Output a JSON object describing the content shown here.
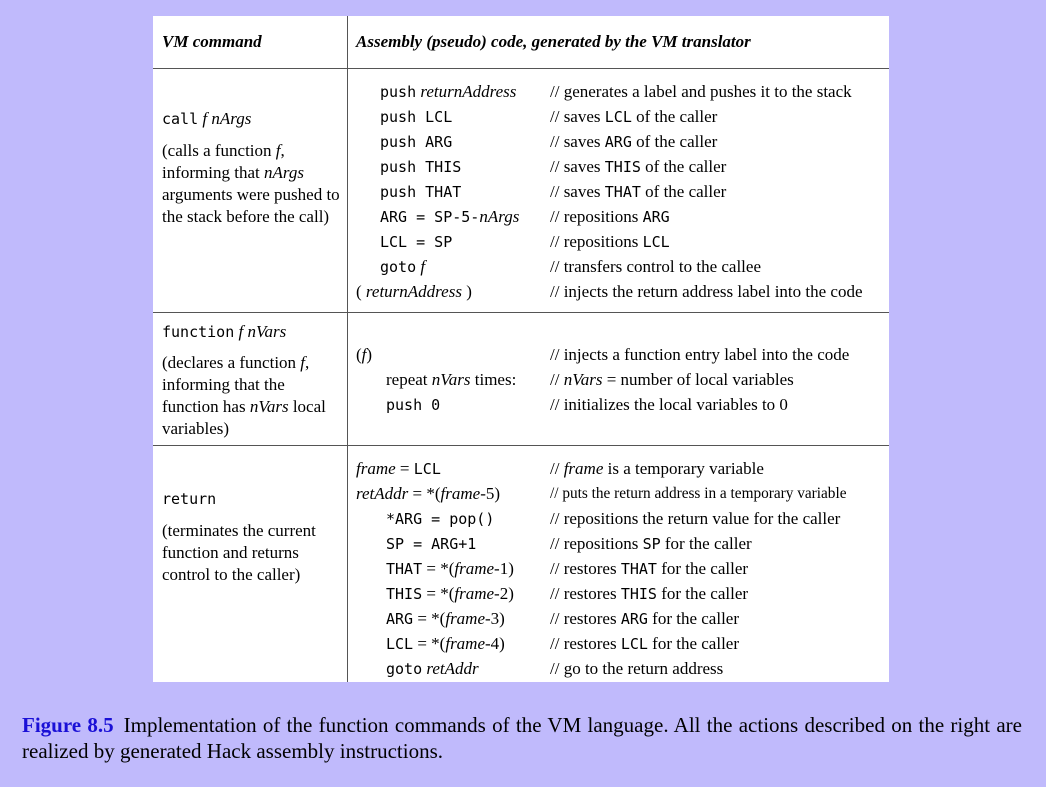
{
  "header": {
    "col1": "VM command",
    "col2": "Assembly (pseudo) code, generated by the VM translator"
  },
  "call": {
    "cmd_kw": "call",
    "cmd_args": "f nArgs",
    "desc_a": "(calls a function ",
    "desc_f": "f",
    "desc_b": ", informing that ",
    "desc_n": "nArgs",
    "desc_c": " arguments were pushed to the stack before the call)",
    "code": [
      {
        "kw": "push",
        "it": "returnAddress",
        "cmt": "// generates a label and pushes it to the stack"
      },
      {
        "kw": "push LCL",
        "cmt_a": "// saves ",
        "cmt_m": "LCL",
        "cmt_b": " of the caller"
      },
      {
        "kw": "push ARG",
        "cmt_a": "// saves ",
        "cmt_m": "ARG",
        "cmt_b": " of the caller"
      },
      {
        "kw": "push THIS",
        "cmt_a": "// saves ",
        "cmt_m": "THIS",
        "cmt_b": " of the caller"
      },
      {
        "kw": "push THAT",
        "cmt_a": "// saves ",
        "cmt_m": "THAT",
        "cmt_b": " of the caller"
      },
      {
        "kw": "ARG = SP-5-",
        "it": "nArgs",
        "cmt_a": "// repositions ",
        "cmt_m": "ARG",
        "cmt_b": ""
      },
      {
        "kw": "LCL = SP",
        "cmt_a": "// repositions ",
        "cmt_m": "LCL",
        "cmt_b": ""
      },
      {
        "kw": "goto",
        "it": "f",
        "cmt": "// transfers control to the callee"
      },
      {
        "open": "(",
        "it": "returnAddress",
        "close": ")",
        "cmt": "// injects the return address label into the code"
      }
    ]
  },
  "function": {
    "cmd_kw": "function",
    "cmd_args": "f nVars",
    "desc_a": "(declares a function ",
    "desc_f": "f",
    "desc_b": ", informing that the function has ",
    "desc_n": "nVars",
    "desc_c": " local variables)",
    "code": [
      {
        "open": "(",
        "it": "f",
        "close": ")",
        "cmt": "// injects a function entry label into the code"
      },
      {
        "pre": "repeat ",
        "it": "nVars",
        "post": " times:",
        "cmt_a": "// ",
        "cmt_i": "nVars",
        "cmt_b": " = number of local variables"
      },
      {
        "kw": "push 0",
        "cmt": "// initializes the local variables to 0"
      }
    ]
  },
  "return": {
    "cmd_kw": "return",
    "desc": "(terminates the current function and returns control to the caller)",
    "code": [
      {
        "it": "frame",
        "mid": " = ",
        "kw": "LCL",
        "cmt_a": "// ",
        "cmt_i": "frame",
        "cmt_b": " is a temporary variable"
      },
      {
        "it": "retAddr",
        "post": " = *(",
        "it2": "frame",
        "post2": "-5)",
        "cmt": "// puts the return address in a temporary variable"
      },
      {
        "kw": "*ARG = pop()",
        "cmt": "// repositions the return value for the caller"
      },
      {
        "kw": "SP = ARG+1",
        "cmt_a": "// repositions ",
        "cmt_m": "SP",
        "cmt_b": " for the caller"
      },
      {
        "kw": "THAT",
        "post": " = *(",
        "it": "frame",
        "post2": "-1)",
        "cmt_a": "// restores ",
        "cmt_m": "THAT",
        "cmt_b": " for the caller"
      },
      {
        "kw": "THIS",
        "post": " = *(",
        "it": "frame",
        "post2": "-2)",
        "cmt_a": "// restores ",
        "cmt_m": "THIS",
        "cmt_b": " for the caller"
      },
      {
        "kw": "ARG",
        "post": " = *(",
        "it": "frame",
        "post2": "-3)",
        "cmt_a": "// restores ",
        "cmt_m": "ARG",
        "cmt_b": " for the caller"
      },
      {
        "kw": "LCL",
        "post": " = *(",
        "it": "frame",
        "post2": "-4)",
        "cmt_a": "// restores ",
        "cmt_m": "LCL",
        "cmt_b": " for the caller"
      },
      {
        "kw": "goto",
        "it": "retAddr",
        "cmt": "// go to the return address"
      }
    ]
  },
  "caption": {
    "label": "Figure 8.5",
    "text": "Implementation of the function commands of the VM language. All the actions described on the right are realized by generated Hack assembly instructions."
  }
}
